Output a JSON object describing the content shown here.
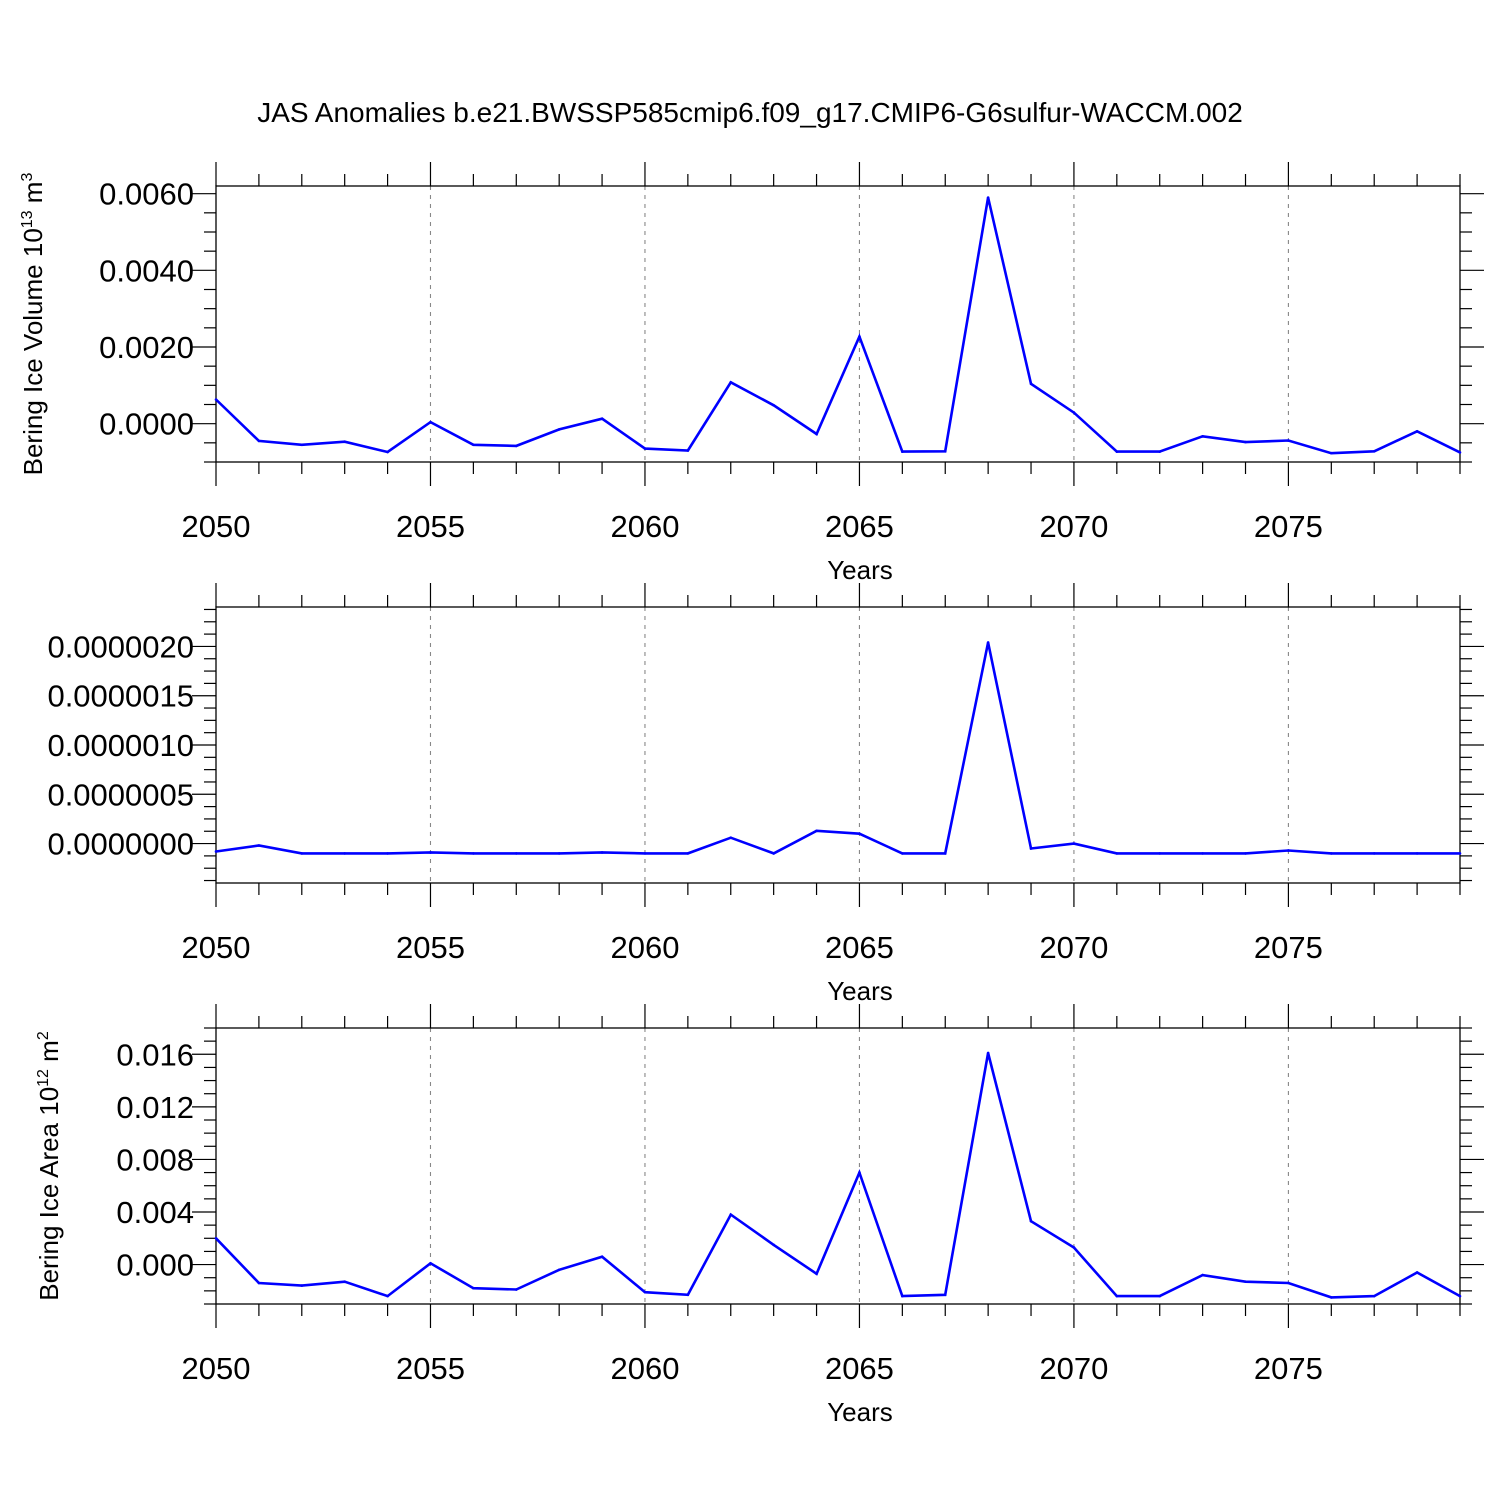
{
  "title": "JAS Anomalies b.e21.BWSSP585cmip6.f09_g17.CMIP6-G6sulfur-WACCM.002",
  "colors": {
    "line": "#0000ff",
    "frame": "#000000",
    "grid": "#888888"
  },
  "chart_data": [
    {
      "type": "line",
      "title": "JAS Anomalies b.e21.BWSSP585cmip6.f09_g17.CMIP6-G6sulfur-WACCM.002",
      "xlabel": "Years",
      "ylabel": "Bering Ice Volume 10",
      "ylabel_sup": "13",
      "ylabel_unit": " m",
      "ylabel_unit_sup": "3",
      "xlim": [
        2050,
        2079
      ],
      "ylim": [
        -0.001,
        0.0062
      ],
      "x_ticks": [
        "2050",
        "2055",
        "2060",
        "2065",
        "2070",
        "2075"
      ],
      "y_ticks": [
        {
          "value": 0.0,
          "label": "0.0000"
        },
        {
          "value": 0.002,
          "label": "0.0020"
        },
        {
          "value": 0.004,
          "label": "0.0040"
        },
        {
          "value": 0.006,
          "label": "0.0060"
        }
      ],
      "grid": "vertical dashed at major x ticks",
      "x": [
        2050,
        2051,
        2052,
        2053,
        2054,
        2055,
        2056,
        2057,
        2058,
        2059,
        2060,
        2061,
        2062,
        2063,
        2064,
        2065,
        2066,
        2067,
        2068,
        2069,
        2070,
        2071,
        2072,
        2073,
        2074,
        2075,
        2076,
        2077,
        2078,
        2079
      ],
      "values": [
        0.00063,
        -0.00045,
        -0.00055,
        -0.00047,
        -0.00074,
        4e-05,
        -0.00055,
        -0.00058,
        -0.00015,
        0.00013,
        -0.00065,
        -0.0007,
        0.00108,
        0.00048,
        -0.00027,
        0.00227,
        -0.00073,
        -0.00072,
        0.0059,
        0.00104,
        0.00029,
        -0.00073,
        -0.00073,
        -0.00033,
        -0.00048,
        -0.00044,
        -0.00077,
        -0.00072,
        -0.0002,
        -0.00075
      ]
    },
    {
      "type": "line",
      "xlabel": "Years",
      "ylabel": "",
      "xlim": [
        2050,
        2079
      ],
      "ylim": [
        -4e-07,
        2.4e-06
      ],
      "x_ticks": [
        "2050",
        "2055",
        "2060",
        "2065",
        "2070",
        "2075"
      ],
      "y_ticks": [
        {
          "value": 0.0,
          "label": "0.0000000"
        },
        {
          "value": 5e-07,
          "label": "0.0000005"
        },
        {
          "value": 1e-06,
          "label": "0.0000010"
        },
        {
          "value": 1.5e-06,
          "label": "0.0000015"
        },
        {
          "value": 2e-06,
          "label": "0.0000020"
        }
      ],
      "grid": "vertical dashed at major x ticks",
      "x": [
        2050,
        2051,
        2052,
        2053,
        2054,
        2055,
        2056,
        2057,
        2058,
        2059,
        2060,
        2061,
        2062,
        2063,
        2064,
        2065,
        2066,
        2067,
        2068,
        2069,
        2070,
        2071,
        2072,
        2073,
        2074,
        2075,
        2076,
        2077,
        2078,
        2079
      ],
      "values": [
        -8e-08,
        -2e-08,
        -1e-07,
        -1e-07,
        -1e-07,
        -9e-08,
        -1e-07,
        -1e-07,
        -1e-07,
        -9e-08,
        -1e-07,
        -1e-07,
        6e-08,
        -1e-07,
        1.3e-07,
        1e-07,
        -1e-07,
        -1e-07,
        2.04e-06,
        -5e-08,
        0.0,
        -1e-07,
        -1e-07,
        -1e-07,
        -1e-07,
        -7e-08,
        -1e-07,
        -1e-07,
        -1e-07,
        -1e-07
      ]
    },
    {
      "type": "line",
      "xlabel": "Years",
      "ylabel": "Bering Ice Area 10",
      "ylabel_sup": "12",
      "ylabel_unit": " m",
      "ylabel_unit_sup": "2",
      "xlim": [
        2050,
        2079
      ],
      "ylim": [
        -0.003,
        0.018
      ],
      "x_ticks": [
        "2050",
        "2055",
        "2060",
        "2065",
        "2070",
        "2075"
      ],
      "y_ticks": [
        {
          "value": 0.0,
          "label": "0.000"
        },
        {
          "value": 0.004,
          "label": "0.004"
        },
        {
          "value": 0.008,
          "label": "0.008"
        },
        {
          "value": 0.012,
          "label": "0.012"
        },
        {
          "value": 0.016,
          "label": "0.016"
        }
      ],
      "grid": "vertical dashed at major x ticks",
      "x": [
        2050,
        2051,
        2052,
        2053,
        2054,
        2055,
        2056,
        2057,
        2058,
        2059,
        2060,
        2061,
        2062,
        2063,
        2064,
        2065,
        2066,
        2067,
        2068,
        2069,
        2070,
        2071,
        2072,
        2073,
        2074,
        2075,
        2076,
        2077,
        2078,
        2079
      ],
      "values": [
        0.002,
        -0.0014,
        -0.0016,
        -0.0013,
        -0.0024,
        0.0001,
        -0.0018,
        -0.0019,
        -0.0004,
        0.0006,
        -0.0021,
        -0.0023,
        0.0038,
        0.0015,
        -0.0007,
        0.007,
        -0.0024,
        -0.0023,
        0.0161,
        0.0033,
        0.0013,
        -0.0024,
        -0.0024,
        -0.0008,
        -0.0013,
        -0.0014,
        -0.0025,
        -0.0024,
        -0.0006,
        -0.0024
      ]
    }
  ]
}
